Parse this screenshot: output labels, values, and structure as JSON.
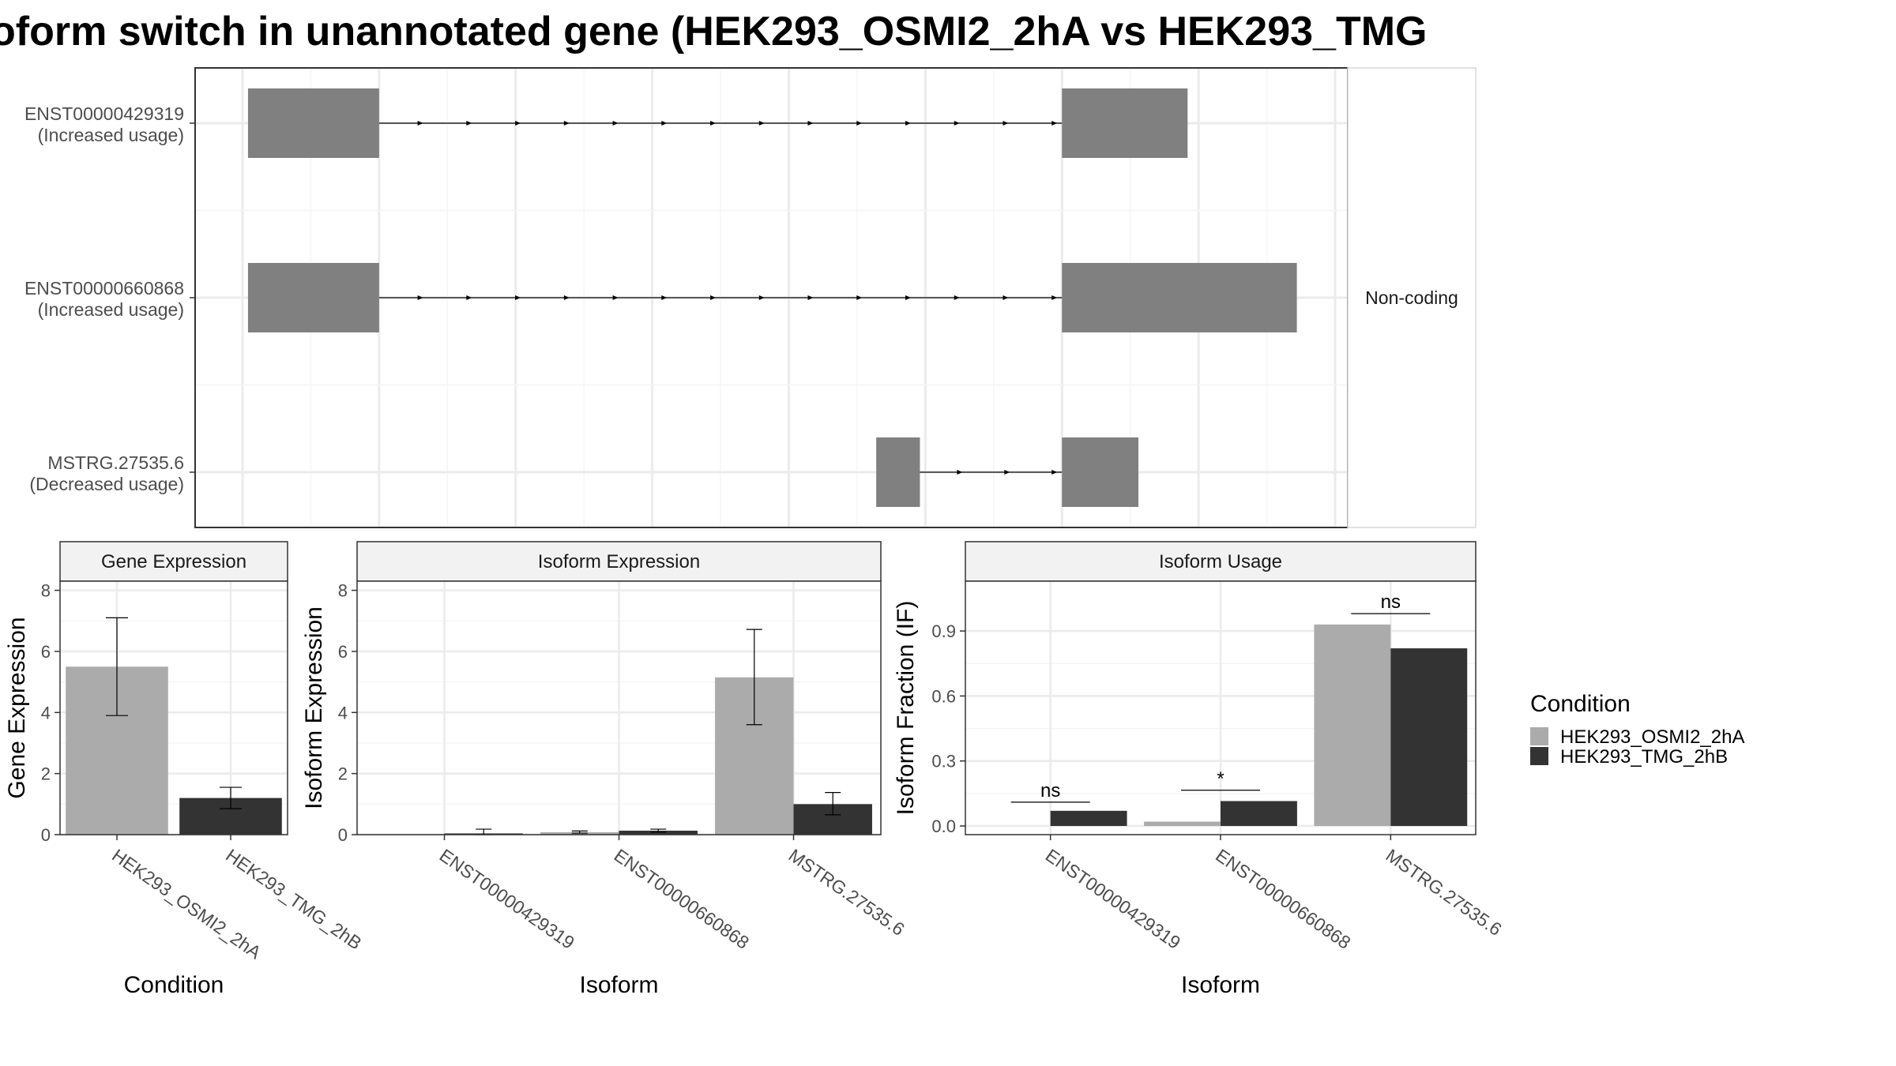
{
  "figure": {
    "title": "oform switch in unannotated gene (HEK293_OSMI2_2hA vs HEK293_TMG"
  },
  "colors": {
    "exon": "#808080",
    "cond_a": "#ababab",
    "cond_b": "#333333",
    "grid": "#ebebeb",
    "panel_border": "#333333",
    "strip_bg": "#f2f2f2",
    "text": "#4d4d4d"
  },
  "legend": {
    "title": "Condition",
    "items": [
      "HEK293_OSMI2_2hA",
      "HEK293_TMG_2hB"
    ]
  },
  "chart_data": [
    {
      "type": "gene-structure",
      "facet_label": "Non-coding",
      "coordinate_range": [
        0,
        1
      ],
      "grid_lines": [
        0.0,
        0.125,
        0.25,
        0.375,
        0.5,
        0.625,
        0.75,
        0.875,
        1.0
      ],
      "isoforms": [
        {
          "name": "ENST00000429319",
          "status": "(Increased usage)",
          "exons": [
            [
              0.005,
              0.125
            ],
            [
              0.75,
              0.865
            ]
          ],
          "introns": [
            [
              0.125,
              0.75
            ]
          ]
        },
        {
          "name": "ENST00000660868",
          "status": "(Increased usage)",
          "exons": [
            [
              0.005,
              0.125
            ],
            [
              0.75,
              0.965
            ]
          ],
          "introns": [
            [
              0.125,
              0.75
            ]
          ]
        },
        {
          "name": "MSTRG.27535.6",
          "status": "(Decreased usage)",
          "exons": [
            [
              0.58,
              0.62
            ],
            [
              0.75,
              0.82
            ]
          ],
          "introns": [
            [
              0.62,
              0.75
            ]
          ]
        }
      ]
    },
    {
      "type": "bar",
      "title": "Gene Expression",
      "xlabel": "Condition",
      "ylabel": "Gene Expression",
      "ylim": [
        0,
        8.3
      ],
      "yticks": [
        0,
        2,
        4,
        6,
        8
      ],
      "grid": true,
      "categories": [
        "HEK293_OSMI2_2hA",
        "HEK293_TMG_2hB"
      ],
      "values": [
        5.5,
        1.2
      ],
      "errors": [
        [
          3.9,
          7.1
        ],
        [
          0.85,
          1.55
        ]
      ]
    },
    {
      "type": "bar",
      "title": "Isoform Expression",
      "xlabel": "Isoform",
      "ylabel": "Isoform Expression",
      "ylim": [
        0,
        8.3
      ],
      "yticks": [
        0,
        2,
        4,
        6,
        8
      ],
      "grid": true,
      "categories": [
        "ENST00000429319",
        "ENST00000660868",
        "MSTRG.27535.6"
      ],
      "series": [
        {
          "name": "HEK293_OSMI2_2hA",
          "values": [
            0.0,
            0.08,
            5.15
          ],
          "errors": [
            [
              0.0,
              0.0
            ],
            [
              0.05,
              0.12
            ],
            [
              3.6,
              6.72
            ]
          ]
        },
        {
          "name": "HEK293_TMG_2hB",
          "values": [
            0.04,
            0.13,
            1.0
          ],
          "errors": [
            [
              0.0,
              0.18
            ],
            [
              0.08,
              0.18
            ],
            [
              0.65,
              1.38
            ]
          ]
        }
      ]
    },
    {
      "type": "bar",
      "title": "Isoform Usage",
      "xlabel": "Isoform",
      "ylabel": "Isoform Fraction (IF)",
      "ylim": [
        -0.04,
        1.13
      ],
      "yticks": [
        0.0,
        0.3,
        0.6,
        0.9
      ],
      "ytick_labels": [
        "0.0",
        "0.3",
        "0.6",
        "0.9"
      ],
      "grid": true,
      "categories": [
        "ENST00000429319",
        "ENST00000660868",
        "MSTRG.27535.6"
      ],
      "series": [
        {
          "name": "HEK293_OSMI2_2hA",
          "values": [
            0.0,
            0.02,
            0.93
          ]
        },
        {
          "name": "HEK293_TMG_2hB",
          "values": [
            0.07,
            0.115,
            0.82
          ]
        }
      ],
      "significance": [
        {
          "label": "ns",
          "value": 0.11
        },
        {
          "label": "*",
          "value": 0.165
        },
        {
          "label": "ns",
          "value": 0.98
        }
      ]
    }
  ]
}
